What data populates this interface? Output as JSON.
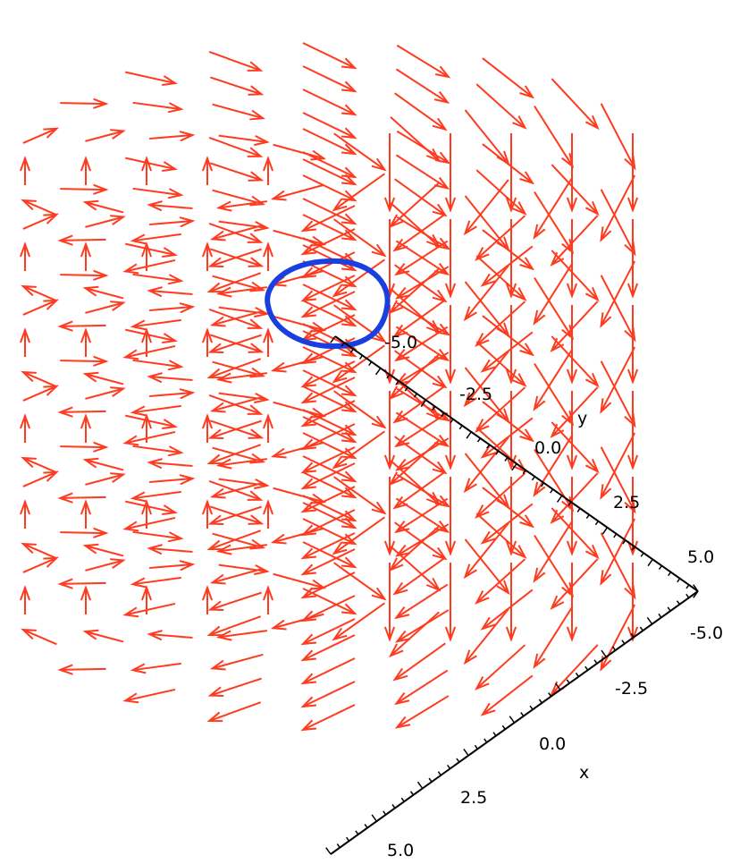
{
  "chart_data": {
    "type": "vectorfield3d",
    "field": "counter-clockwise rotation about the vertical axis, unit-length arrows",
    "x_axis": {
      "label": "x",
      "ticks": [
        "-5.0",
        "-2.5",
        "0.0",
        "2.5",
        "5.0"
      ],
      "range": [
        -5,
        5
      ]
    },
    "y_axis": {
      "label": "y",
      "ticks": [
        "-5.0",
        "-2.5",
        "0.0",
        "2.5",
        "5.0"
      ],
      "range": [
        -5,
        5
      ]
    },
    "grid": {
      "rings": [
        5,
        4,
        3,
        2,
        1,
        0
      ],
      "levels": 6
    },
    "arrow_color": "#ff3b1f",
    "curve": {
      "type": "closed-loop",
      "color": "#1a3fe0",
      "description": "highlighted circle at the upper centre of the field"
    },
    "axis_color": "#000000",
    "grid_lines": false,
    "legend": "none"
  }
}
